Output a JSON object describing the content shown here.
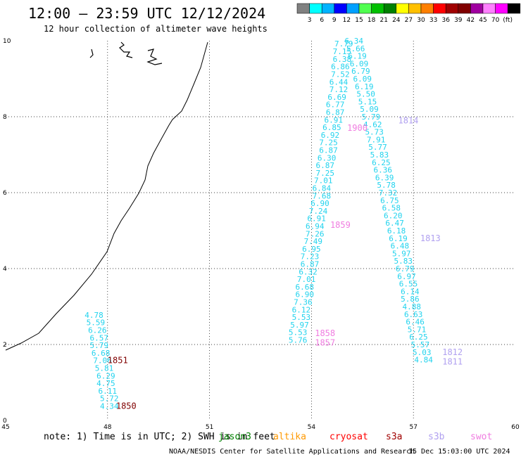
{
  "header": {
    "title": "12:00 — 23:59 UTC 12/12/2024",
    "subtitle": "12 hour collection of altimeter wave heights"
  },
  "scale": {
    "colors": [
      "#808080",
      "#00ffff",
      "#00b3ff",
      "#0000ff",
      "#00a0ff",
      "#50ff50",
      "#00c000",
      "#008000",
      "#ffff00",
      "#ffc000",
      "#ff8000",
      "#ff0000",
      "#a00000",
      "#800000",
      "#a000a0",
      "#ff80ff",
      "#ff00ff",
      "#000000"
    ],
    "labels": [
      "3",
      "6",
      "9",
      "12",
      "15",
      "18",
      "21",
      "24",
      "27",
      "30",
      "33",
      "36",
      "39",
      "42",
      "45",
      "70",
      "(ft)"
    ]
  },
  "axes": {
    "x_ticks": [
      "45",
      "48",
      "51",
      "54",
      "57",
      "60"
    ],
    "y_ticks": [
      "0",
      "2",
      "4",
      "6",
      "8",
      "10"
    ]
  },
  "colors": {
    "cyan": "#22d3ee",
    "pink": "#f07ce0",
    "darkred": "#800000",
    "lavender": "#b0a0f0"
  },
  "tracks": [
    {
      "name": "left",
      "points": [
        {
          "lon": 47.6,
          "lat": 2.78,
          "v": "4.78"
        },
        {
          "lon": 47.65,
          "lat": 2.58,
          "v": "5.59"
        },
        {
          "lon": 47.7,
          "lat": 2.38,
          "v": "6.26"
        },
        {
          "lon": 47.75,
          "lat": 2.18,
          "v": "6.57"
        },
        {
          "lon": 47.75,
          "lat": 1.98,
          "v": "5.79"
        },
        {
          "lon": 47.8,
          "lat": 1.78,
          "v": "6.68"
        },
        {
          "lon": 47.85,
          "lat": 1.58,
          "v": "7.06"
        },
        {
          "lon": 47.9,
          "lat": 1.38,
          "v": "5.81"
        },
        {
          "lon": 47.95,
          "lat": 1.18,
          "v": "6.29"
        },
        {
          "lon": 47.95,
          "lat": 0.98,
          "v": "4.75"
        },
        {
          "lon": 48.0,
          "lat": 0.78,
          "v": "6.11"
        },
        {
          "lon": 48.05,
          "lat": 0.58,
          "v": "5.72"
        },
        {
          "lon": 48.05,
          "lat": 0.38,
          "v": "4.34"
        }
      ]
    },
    {
      "name": "a-left",
      "points": [
        {
          "lon": 54.95,
          "lat": 9.93,
          "v": "7.79"
        },
        {
          "lon": 54.9,
          "lat": 9.72,
          "v": "7.15"
        },
        {
          "lon": 54.9,
          "lat": 9.52,
          "v": "6.38"
        },
        {
          "lon": 54.85,
          "lat": 9.32,
          "v": "6.86"
        },
        {
          "lon": 54.85,
          "lat": 9.12,
          "v": "7.52"
        },
        {
          "lon": 54.8,
          "lat": 8.92,
          "v": "6.44"
        },
        {
          "lon": 54.8,
          "lat": 8.72,
          "v": "7.12"
        },
        {
          "lon": 54.75,
          "lat": 8.52,
          "v": "6.69"
        },
        {
          "lon": 54.7,
          "lat": 8.32,
          "v": "6.77"
        },
        {
          "lon": 54.7,
          "lat": 8.12,
          "v": "6.87"
        },
        {
          "lon": 54.65,
          "lat": 7.92,
          "v": "6.91"
        },
        {
          "lon": 54.6,
          "lat": 7.72,
          "v": "6.85"
        },
        {
          "lon": 54.55,
          "lat": 7.52,
          "v": "6.92"
        },
        {
          "lon": 54.5,
          "lat": 7.32,
          "v": "7.25"
        },
        {
          "lon": 54.5,
          "lat": 7.12,
          "v": "6.87"
        },
        {
          "lon": 54.45,
          "lat": 6.92,
          "v": "6.30"
        },
        {
          "lon": 54.4,
          "lat": 6.72,
          "v": "6.87"
        },
        {
          "lon": 54.4,
          "lat": 6.52,
          "v": "7.25"
        },
        {
          "lon": 54.35,
          "lat": 6.32,
          "v": "7.01"
        },
        {
          "lon": 54.3,
          "lat": 6.12,
          "v": "6.84"
        },
        {
          "lon": 54.3,
          "lat": 5.92,
          "v": "7.68"
        },
        {
          "lon": 54.25,
          "lat": 5.72,
          "v": "6.90"
        },
        {
          "lon": 54.2,
          "lat": 5.52,
          "v": "7.24"
        },
        {
          "lon": 54.15,
          "lat": 5.32,
          "v": "6.91"
        },
        {
          "lon": 54.1,
          "lat": 5.12,
          "v": "6.94"
        },
        {
          "lon": 54.1,
          "lat": 4.92,
          "v": "7.26"
        },
        {
          "lon": 54.05,
          "lat": 4.72,
          "v": "7.49"
        },
        {
          "lon": 54.0,
          "lat": 4.52,
          "v": "6.95"
        },
        {
          "lon": 53.95,
          "lat": 4.32,
          "v": "7.23"
        },
        {
          "lon": 53.95,
          "lat": 4.12,
          "v": "6.87"
        },
        {
          "lon": 53.9,
          "lat": 3.92,
          "v": "6.32"
        },
        {
          "lon": 53.85,
          "lat": 3.72,
          "v": "7.01"
        },
        {
          "lon": 53.8,
          "lat": 3.52,
          "v": "6.68"
        },
        {
          "lon": 53.8,
          "lat": 3.32,
          "v": "6.90"
        },
        {
          "lon": 53.75,
          "lat": 3.12,
          "v": "7.36"
        },
        {
          "lon": 53.7,
          "lat": 2.92,
          "v": "6.12"
        },
        {
          "lon": 53.7,
          "lat": 2.72,
          "v": "5.53"
        },
        {
          "lon": 53.65,
          "lat": 2.52,
          "v": "5.97"
        },
        {
          "lon": 53.6,
          "lat": 2.32,
          "v": "5.53"
        },
        {
          "lon": 53.6,
          "lat": 2.12,
          "v": "5.76"
        }
      ]
    },
    {
      "name": "a-right",
      "points": [
        {
          "lon": 55.25,
          "lat": 10.0,
          "v": "6.34"
        },
        {
          "lon": 55.3,
          "lat": 9.8,
          "v": "5.66"
        },
        {
          "lon": 55.35,
          "lat": 9.6,
          "v": "6.19"
        },
        {
          "lon": 55.4,
          "lat": 9.4,
          "v": "6.09"
        },
        {
          "lon": 55.45,
          "lat": 9.2,
          "v": "6.79"
        },
        {
          "lon": 55.5,
          "lat": 9.0,
          "v": "6.09"
        },
        {
          "lon": 55.55,
          "lat": 8.8,
          "v": "6.19"
        },
        {
          "lon": 55.6,
          "lat": 8.6,
          "v": "5.50"
        },
        {
          "lon": 55.65,
          "lat": 8.4,
          "v": "5.15"
        },
        {
          "lon": 55.7,
          "lat": 8.2,
          "v": "5.09"
        },
        {
          "lon": 55.75,
          "lat": 8.0,
          "v": "5.79"
        },
        {
          "lon": 55.8,
          "lat": 7.8,
          "v": "4.62"
        },
        {
          "lon": 55.85,
          "lat": 7.6,
          "v": "5.73"
        },
        {
          "lon": 55.9,
          "lat": 7.4,
          "v": "7.91"
        },
        {
          "lon": 55.95,
          "lat": 7.2,
          "v": "5.77"
        },
        {
          "lon": 56.0,
          "lat": 7.0,
          "v": "5.83"
        },
        {
          "lon": 56.05,
          "lat": 6.8,
          "v": "6.25"
        },
        {
          "lon": 56.1,
          "lat": 6.6,
          "v": "6.36"
        },
        {
          "lon": 56.15,
          "lat": 6.4,
          "v": "6.39"
        },
        {
          "lon": 56.2,
          "lat": 6.2,
          "v": "5.78"
        },
        {
          "lon": 56.25,
          "lat": 6.0,
          "v": "7.32"
        },
        {
          "lon": 56.3,
          "lat": 5.8,
          "v": "6.75"
        },
        {
          "lon": 56.35,
          "lat": 5.6,
          "v": "6.58"
        },
        {
          "lon": 56.4,
          "lat": 5.4,
          "v": "6.20"
        },
        {
          "lon": 56.45,
          "lat": 5.2,
          "v": "6.47"
        },
        {
          "lon": 56.5,
          "lat": 5.0,
          "v": "6.18"
        },
        {
          "lon": 56.55,
          "lat": 4.8,
          "v": "6.19"
        },
        {
          "lon": 56.6,
          "lat": 4.6,
          "v": "6.48"
        },
        {
          "lon": 56.65,
          "lat": 4.4,
          "v": "5.97"
        },
        {
          "lon": 56.7,
          "lat": 4.2,
          "v": "5.83"
        },
        {
          "lon": 56.75,
          "lat": 4.0,
          "v": "6.79"
        },
        {
          "lon": 56.8,
          "lat": 3.8,
          "v": "6.97"
        },
        {
          "lon": 56.85,
          "lat": 3.6,
          "v": "6.55"
        },
        {
          "lon": 56.9,
          "lat": 3.4,
          "v": "6.14"
        },
        {
          "lon": 56.9,
          "lat": 3.2,
          "v": "5.86"
        },
        {
          "lon": 56.95,
          "lat": 3.0,
          "v": "4.88"
        },
        {
          "lon": 57.0,
          "lat": 2.8,
          "v": "6.63"
        },
        {
          "lon": 57.05,
          "lat": 2.6,
          "v": "6.46"
        },
        {
          "lon": 57.1,
          "lat": 2.4,
          "v": "5.71"
        },
        {
          "lon": 57.15,
          "lat": 2.2,
          "v": "6.25"
        },
        {
          "lon": 57.2,
          "lat": 2.0,
          "v": "5.57"
        },
        {
          "lon": 57.25,
          "lat": 1.8,
          "v": "5.03"
        },
        {
          "lon": 57.3,
          "lat": 1.6,
          "v": "4.84"
        }
      ]
    }
  ],
  "time_labels": [
    {
      "text": "1850",
      "lon": 48.25,
      "lat": 0.38,
      "color": "darkred"
    },
    {
      "text": "1851",
      "lon": 48.0,
      "lat": 1.58,
      "color": "darkred"
    },
    {
      "text": "1900",
      "lon": 55.05,
      "lat": 7.7,
      "color": "pink"
    },
    {
      "text": "1814",
      "lon": 56.55,
      "lat": 7.9,
      "color": "lavender"
    },
    {
      "text": "1859",
      "lon": 54.55,
      "lat": 5.15,
      "color": "pink"
    },
    {
      "text": "1813",
      "lon": 57.2,
      "lat": 4.8,
      "color": "lavender"
    },
    {
      "text": "1858",
      "lon": 54.1,
      "lat": 2.3,
      "color": "pink"
    },
    {
      "text": "1857",
      "lon": 54.1,
      "lat": 2.05,
      "color": "pink"
    },
    {
      "text": "1812",
      "lon": 57.85,
      "lat": 1.8,
      "color": "lavender"
    },
    {
      "text": "1811",
      "lon": 57.85,
      "lat": 1.55,
      "color": "lavender"
    }
  ],
  "footer": {
    "note": "note: 1) Time is in UTC; 2) SWH is in feet",
    "satellites": [
      {
        "name": "jason3",
        "color": "#008000"
      },
      {
        "name": "altika",
        "color": "#ff9900"
      },
      {
        "name": "cryosat",
        "color": "#ff0000"
      },
      {
        "name": "s3a",
        "color": "#a00000"
      },
      {
        "name": "s3b",
        "color": "#b0a0f0"
      },
      {
        "name": "swot",
        "color": "#f07ce0"
      }
    ],
    "credit_left": "NOAA/NESDIS Center for Satellite Applications and Research",
    "credit_right": "15 Dec 15:03:00 UTC 2024"
  }
}
